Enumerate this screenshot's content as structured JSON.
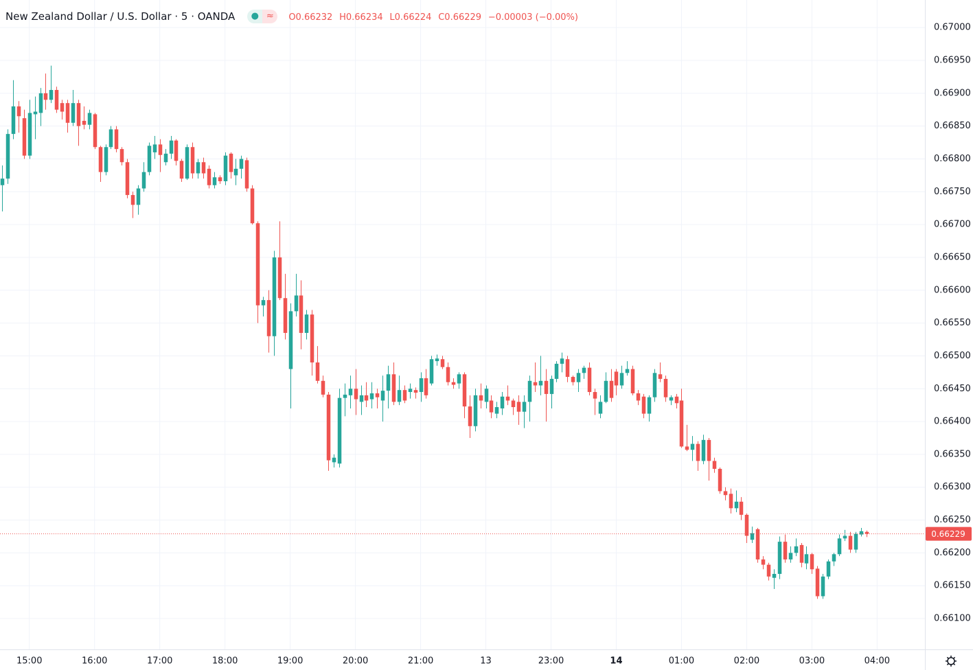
{
  "chart_data": {
    "type": "candlestick",
    "title": "New Zealand Dollar / U.S. Dollar · 5 · OANDA",
    "header_values": [
      "O0.66232",
      "H0.66234",
      "L0.66224",
      "C0.66229",
      "−0.00003 (−0.00%)"
    ],
    "up_color": "#26a69a",
    "down_color": "#ef5350",
    "grid": true,
    "last_price": 0.66229,
    "xlim": [
      "14:33",
      "04:44"
    ],
    "ylim": [
      0.66053,
      0.67042
    ],
    "xticks": [
      "15:00",
      "16:00",
      "17:00",
      "18:00",
      "19:00",
      "20:00",
      "21:00",
      {
        "value": "22:00",
        "label": "13"
      },
      "23:00",
      {
        "value": "00:00",
        "label": "14"
      },
      "01:00",
      "02:00",
      "03:00",
      "04:00"
    ],
    "yticks": [
      {
        "value": 0.661,
        "label": "0.66100"
      },
      {
        "value": 0.6615,
        "label": "0.66150"
      },
      {
        "value": 0.662,
        "label": "0.66200"
      },
      {
        "value": 0.6625,
        "label": "0.66250"
      },
      {
        "value": 0.663,
        "label": "0.66300"
      },
      {
        "value": 0.6635,
        "label": "0.66350"
      },
      {
        "value": 0.664,
        "label": "0.66400"
      },
      {
        "value": 0.6645,
        "label": "0.66450"
      },
      {
        "value": 0.665,
        "label": "0.66500"
      },
      {
        "value": 0.6655,
        "label": "0.66550"
      },
      {
        "value": 0.666,
        "label": "0.66600"
      },
      {
        "value": 0.6665,
        "label": "0.66650"
      },
      {
        "value": 0.667,
        "label": "0.66700"
      },
      {
        "value": 0.6675,
        "label": "0.66750"
      },
      {
        "value": 0.668,
        "label": "0.66800"
      },
      {
        "value": 0.6685,
        "label": "0.66850"
      },
      {
        "value": 0.669,
        "label": "0.66900"
      },
      {
        "value": 0.6695,
        "label": "0.66950"
      },
      {
        "value": 0.67,
        "label": "0.67000"
      }
    ],
    "x": [
      "14:35",
      "14:40",
      "14:45",
      "14:50",
      "14:55",
      "15:00",
      "15:05",
      "15:10",
      "15:15",
      "15:20",
      "15:25",
      "15:30",
      "15:35",
      "15:40",
      "15:45",
      "15:50",
      "15:55",
      "16:00",
      "16:05",
      "16:10",
      "16:15",
      "16:20",
      "16:25",
      "16:30",
      "16:35",
      "16:40",
      "16:45",
      "16:50",
      "16:55",
      "17:00",
      "17:05",
      "17:10",
      "17:15",
      "17:20",
      "17:25",
      "17:30",
      "17:35",
      "17:40",
      "17:45",
      "17:50",
      "17:55",
      "18:00",
      "18:05",
      "18:10",
      "18:15",
      "18:20",
      "18:25",
      "18:30",
      "18:35",
      "18:40",
      "18:45",
      "18:50",
      "18:55",
      "19:00",
      "19:05",
      "19:10",
      "19:15",
      "19:20",
      "19:25",
      "19:30",
      "19:35",
      "19:40",
      "19:45",
      "19:50",
      "19:55",
      "20:00",
      "20:05",
      "20:10",
      "20:15",
      "20:20",
      "20:25",
      "20:30",
      "20:35",
      "20:40",
      "20:45",
      "20:50",
      "20:55",
      "21:00",
      "21:05",
      "21:10",
      "21:15",
      "21:20",
      "21:25",
      "21:30",
      "21:35",
      "21:40",
      "21:45",
      "21:50",
      "21:55",
      "22:00",
      "22:05",
      "22:10",
      "22:15",
      "22:20",
      "22:25",
      "22:30",
      "22:35",
      "22:40",
      "22:45",
      "22:50",
      "22:55",
      "23:00",
      "23:05",
      "23:10",
      "23:15",
      "23:20",
      "23:25",
      "23:30",
      "23:35",
      "23:40",
      "23:45",
      "23:50",
      "23:55",
      "00:00",
      "00:05",
      "00:10",
      "00:15",
      "00:20",
      "00:25",
      "00:30",
      "00:35",
      "00:40",
      "00:45",
      "00:50",
      "00:55",
      "01:00",
      "01:05",
      "01:10",
      "01:15",
      "01:20",
      "01:25",
      "01:30",
      "01:35",
      "01:40",
      "01:45",
      "01:50",
      "01:55",
      "02:00",
      "02:05",
      "02:10",
      "02:15",
      "02:20",
      "02:25",
      "02:30",
      "02:35",
      "02:40",
      "02:45",
      "02:50",
      "02:55",
      "03:00",
      "03:05",
      "03:10",
      "03:15",
      "03:20",
      "03:25",
      "03:30",
      "03:35",
      "03:40",
      "03:45",
      "03:50"
    ],
    "open": [
      0.6676,
      0.6677,
      0.66838,
      0.6688,
      0.66862,
      0.66805,
      0.66868,
      0.6687,
      0.669,
      0.6689,
      0.66905,
      0.66885,
      0.66885,
      0.66855,
      0.66885,
      0.66858,
      0.66852,
      0.66868,
      0.66818,
      0.6678,
      0.66818,
      0.66845,
      0.66815,
      0.66795,
      0.66745,
      0.6673,
      0.66755,
      0.6678,
      0.6681,
      0.66822,
      0.66795,
      0.66808,
      0.66828,
      0.66797,
      0.6677,
      0.66818,
      0.66778,
      0.66795,
      0.66785,
      0.6676,
      0.66772,
      0.66766,
      0.66808,
      0.66775,
      0.66785,
      0.66798,
      0.66755,
      0.66702,
      0.66577,
      0.66585,
      0.6653,
      0.6665,
      0.66588,
      0.6648,
      0.66568,
      0.66592,
      0.66535,
      0.66563,
      0.6649,
      0.66462,
      0.66441,
      0.66338,
      0.66336,
      0.66436,
      0.6644,
      0.6645,
      0.6643,
      0.6644,
      0.66434,
      0.66443,
      0.66432,
      0.66447,
      0.66472,
      0.6643,
      0.66448,
      0.66445,
      0.66448,
      0.66445,
      0.66466,
      0.66458,
      0.66492,
      0.66495,
      0.66483,
      0.6646,
      0.66458,
      0.66472,
      0.66423,
      0.66393,
      0.6644,
      0.6643,
      0.66432,
      0.66412,
      0.6642,
      0.66438,
      0.66432,
      0.6643,
      0.66415,
      0.6643,
      0.6646,
      0.66455,
      0.66462,
      0.66442,
      0.66465,
      0.66488,
      0.66495,
      0.66468,
      0.6646,
      0.66474,
      0.66482,
      0.66445,
      0.66412,
      0.6643,
      0.66462,
      0.66476,
      0.66455,
      0.66474,
      0.6648,
      0.66443,
      0.66438,
      0.66412,
      0.66437,
      0.66472,
      0.66465,
      0.66432,
      0.66438,
      0.66432,
      0.66362,
      0.66357,
      0.66366,
      0.6634,
      0.66372,
      0.6634,
      0.66328,
      0.66294,
      0.6629,
      0.66268,
      0.66278,
      0.66258,
      0.6622,
      0.66236,
      0.6619,
      0.66182,
      0.66162,
      0.66168,
      0.66217,
      0.6619,
      0.662,
      0.66212,
      0.66184,
      0.66198,
      0.66176,
      0.66134,
      0.66164,
      0.66187,
      0.66198,
      0.66222,
      0.66226,
      0.66205,
      0.66228,
      0.66232
    ],
    "high": [
      0.6679,
      0.66845,
      0.6692,
      0.66888,
      0.66875,
      0.6689,
      0.66895,
      0.66908,
      0.6693,
      0.66942,
      0.6691,
      0.6689,
      0.6689,
      0.66905,
      0.6689,
      0.6688,
      0.66875,
      0.6687,
      0.6682,
      0.66822,
      0.6685,
      0.6685,
      0.66818,
      0.668,
      0.6675,
      0.6676,
      0.66795,
      0.66825,
      0.66835,
      0.6683,
      0.66815,
      0.66835,
      0.6683,
      0.668,
      0.66822,
      0.66825,
      0.668,
      0.66802,
      0.6679,
      0.6678,
      0.66775,
      0.6681,
      0.6681,
      0.668,
      0.66805,
      0.66802,
      0.6676,
      0.66705,
      0.6659,
      0.666,
      0.6666,
      0.66705,
      0.66625,
      0.6658,
      0.66625,
      0.66615,
      0.6657,
      0.6657,
      0.66515,
      0.6647,
      0.66445,
      0.6635,
      0.6645,
      0.66458,
      0.6647,
      0.6648,
      0.66455,
      0.6646,
      0.6646,
      0.6645,
      0.6647,
      0.66485,
      0.6649,
      0.6647,
      0.66455,
      0.66458,
      0.66452,
      0.66475,
      0.6648,
      0.665,
      0.66502,
      0.665,
      0.6649,
      0.66466,
      0.66475,
      0.66475,
      0.6644,
      0.6645,
      0.66458,
      0.66455,
      0.6644,
      0.6643,
      0.66445,
      0.66455,
      0.66435,
      0.6644,
      0.6644,
      0.6647,
      0.6649,
      0.665,
      0.6648,
      0.6647,
      0.66492,
      0.66505,
      0.665,
      0.6647,
      0.6648,
      0.66485,
      0.6649,
      0.6645,
      0.6644,
      0.66475,
      0.6648,
      0.6648,
      0.66485,
      0.66492,
      0.66485,
      0.66448,
      0.66442,
      0.6644,
      0.6648,
      0.6649,
      0.6647,
      0.6644,
      0.66442,
      0.6645,
      0.66395,
      0.66378,
      0.6637,
      0.6638,
      0.66375,
      0.66345,
      0.6633,
      0.663,
      0.66298,
      0.66295,
      0.66285,
      0.6626,
      0.6624,
      0.66238,
      0.66195,
      0.66185,
      0.66175,
      0.66225,
      0.66228,
      0.6621,
      0.66222,
      0.66215,
      0.6621,
      0.662,
      0.6618,
      0.66168,
      0.6619,
      0.662,
      0.66228,
      0.66235,
      0.66232,
      0.66232,
      0.66238,
      0.66234
    ],
    "low": [
      0.6672,
      0.66762,
      0.6683,
      0.6684,
      0.668,
      0.668,
      0.6683,
      0.6685,
      0.66875,
      0.66885,
      0.6687,
      0.6686,
      0.6684,
      0.6685,
      0.6682,
      0.66845,
      0.66845,
      0.66815,
      0.66765,
      0.66775,
      0.66815,
      0.6681,
      0.6679,
      0.6674,
      0.6671,
      0.66715,
      0.6675,
      0.66775,
      0.668,
      0.6678,
      0.6679,
      0.668,
      0.6679,
      0.66765,
      0.66768,
      0.6677,
      0.6677,
      0.6677,
      0.66755,
      0.66755,
      0.66762,
      0.6676,
      0.6677,
      0.6676,
      0.6677,
      0.6675,
      0.667,
      0.6655,
      0.6656,
      0.66505,
      0.665,
      0.66585,
      0.66525,
      0.6642,
      0.6656,
      0.6651,
      0.66525,
      0.6647,
      0.66458,
      0.66437,
      0.66325,
      0.6633,
      0.6633,
      0.66408,
      0.6642,
      0.6641,
      0.6641,
      0.66422,
      0.6642,
      0.6642,
      0.664,
      0.6642,
      0.66425,
      0.66425,
      0.66428,
      0.66435,
      0.66435,
      0.6643,
      0.66435,
      0.66455,
      0.66485,
      0.6648,
      0.66455,
      0.6645,
      0.6645,
      0.66405,
      0.66375,
      0.66385,
      0.6642,
      0.6642,
      0.66405,
      0.66405,
      0.6641,
      0.66425,
      0.6641,
      0.66395,
      0.6639,
      0.664,
      0.66445,
      0.6644,
      0.664,
      0.6642,
      0.6646,
      0.66475,
      0.6646,
      0.66455,
      0.66445,
      0.66465,
      0.6644,
      0.6641,
      0.66405,
      0.66428,
      0.6643,
      0.6644,
      0.6645,
      0.6647,
      0.6644,
      0.66425,
      0.66405,
      0.664,
      0.6643,
      0.6646,
      0.6643,
      0.66425,
      0.6642,
      0.6636,
      0.66355,
      0.6634,
      0.66325,
      0.66335,
      0.6631,
      0.66322,
      0.6629,
      0.6628,
      0.6626,
      0.66262,
      0.6625,
      0.66215,
      0.66215,
      0.66185,
      0.66175,
      0.66158,
      0.66145,
      0.6616,
      0.66185,
      0.66185,
      0.66195,
      0.66178,
      0.66175,
      0.66168,
      0.6613,
      0.6613,
      0.6616,
      0.6618,
      0.66195,
      0.66218,
      0.662,
      0.662,
      0.66225,
      0.66224
    ],
    "close": [
      0.6677,
      0.66838,
      0.6688,
      0.66865,
      0.66805,
      0.6687,
      0.66872,
      0.669,
      0.6689,
      0.66905,
      0.66875,
      0.66872,
      0.66855,
      0.66885,
      0.6685,
      0.66852,
      0.6687,
      0.66818,
      0.6678,
      0.66818,
      0.66845,
      0.66815,
      0.66795,
      0.66745,
      0.6673,
      0.66755,
      0.6678,
      0.6682,
      0.66822,
      0.66806,
      0.66808,
      0.66828,
      0.66797,
      0.6677,
      0.66818,
      0.66778,
      0.66795,
      0.66778,
      0.6676,
      0.66772,
      0.66766,
      0.66805,
      0.6678,
      0.66785,
      0.668,
      0.66755,
      0.66702,
      0.66577,
      0.66585,
      0.6653,
      0.6665,
      0.66588,
      0.66535,
      0.66568,
      0.66592,
      0.66535,
      0.66563,
      0.6649,
      0.66462,
      0.66441,
      0.66341,
      0.66345,
      0.66436,
      0.66441,
      0.6645,
      0.66434,
      0.6644,
      0.66432,
      0.66443,
      0.66437,
      0.66447,
      0.66472,
      0.6643,
      0.66448,
      0.66432,
      0.6645,
      0.66444,
      0.66466,
      0.6644,
      0.66495,
      0.66496,
      0.66483,
      0.6646,
      0.66456,
      0.66472,
      0.66423,
      0.66393,
      0.6644,
      0.66432,
      0.6645,
      0.66414,
      0.66422,
      0.66438,
      0.66432,
      0.66422,
      0.66415,
      0.6643,
      0.66462,
      0.66455,
      0.66462,
      0.66442,
      0.66465,
      0.66488,
      0.66496,
      0.66468,
      0.6646,
      0.66474,
      0.66482,
      0.66445,
      0.66435,
      0.6643,
      0.66462,
      0.66436,
      0.66455,
      0.66474,
      0.6648,
      0.66443,
      0.66432,
      0.66412,
      0.66437,
      0.66474,
      0.66465,
      0.66437,
      0.66437,
      0.66428,
      0.66362,
      0.66357,
      0.66366,
      0.6634,
      0.66372,
      0.6634,
      0.66328,
      0.66294,
      0.66288,
      0.66268,
      0.66278,
      0.66258,
      0.66226,
      0.6623,
      0.6619,
      0.66182,
      0.66164,
      0.66168,
      0.66217,
      0.6619,
      0.662,
      0.6621,
      0.66185,
      0.66198,
      0.66175,
      0.66134,
      0.66164,
      0.66187,
      0.66198,
      0.66222,
      0.66226,
      0.66205,
      0.66229,
      0.66233,
      0.66229
    ]
  }
}
